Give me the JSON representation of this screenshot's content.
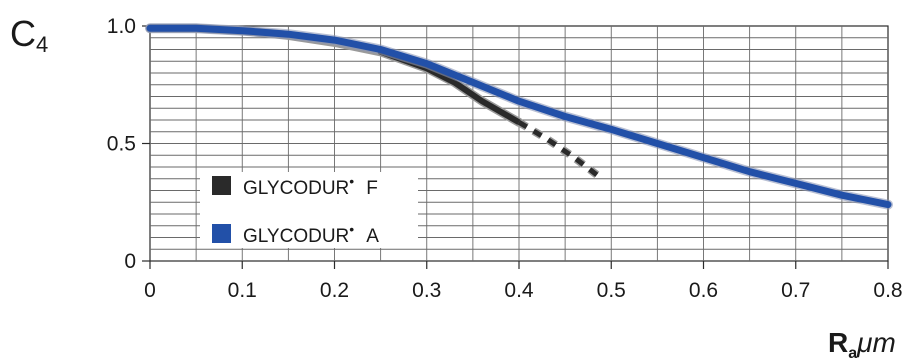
{
  "chart_data": {
    "type": "line",
    "ylabel": "C",
    "ylabel_sub": "4",
    "xlabel": "R",
    "xlabel_sub": "a",
    "xlabel_unit": "μm",
    "xlim": [
      0,
      0.8
    ],
    "ylim": [
      0,
      1.0
    ],
    "x_ticks": [
      0,
      0.1,
      0.2,
      0.3,
      0.4,
      0.5,
      0.6,
      0.7,
      0.8
    ],
    "x_tick_labels": [
      "0",
      "0.1",
      "0.2",
      "0.3",
      "0.4",
      "0.5",
      "0.6",
      "0.7",
      "0.8"
    ],
    "y_ticks": [
      0,
      0.5,
      1.0
    ],
    "y_tick_labels": [
      "0",
      "0.5",
      "1.0"
    ],
    "grid": true,
    "legend": {
      "placement": "bottom-left",
      "entries": [
        {
          "label": "GLYCODUR",
          "mark": "•",
          "suffix": "F",
          "color": "#2a2a2a"
        },
        {
          "label": "GLYCODUR",
          "mark": "•",
          "suffix": "A",
          "color": "#2250a8"
        }
      ]
    },
    "series": [
      {
        "name": "GLYCODUR F",
        "color": "#2a2a2a",
        "shadow_color": "#9a9a9a",
        "x": [
          0,
          0.05,
          0.1,
          0.15,
          0.2,
          0.25,
          0.3,
          0.33,
          0.36,
          0.4
        ],
        "y": [
          0.99,
          0.99,
          0.98,
          0.96,
          0.93,
          0.89,
          0.82,
          0.76,
          0.68,
          0.59
        ],
        "dashed_x": [
          0.4,
          0.43,
          0.46,
          0.49
        ],
        "dashed_y": [
          0.59,
          0.52,
          0.44,
          0.35
        ]
      },
      {
        "name": "GLYCODUR A",
        "color": "#2250a8",
        "x": [
          0,
          0.05,
          0.1,
          0.15,
          0.2,
          0.25,
          0.3,
          0.35,
          0.4,
          0.45,
          0.5,
          0.55,
          0.6,
          0.65,
          0.7,
          0.75,
          0.8
        ],
        "y": [
          0.99,
          0.99,
          0.98,
          0.965,
          0.94,
          0.9,
          0.84,
          0.76,
          0.68,
          0.615,
          0.56,
          0.5,
          0.44,
          0.38,
          0.33,
          0.28,
          0.24
        ]
      }
    ]
  }
}
